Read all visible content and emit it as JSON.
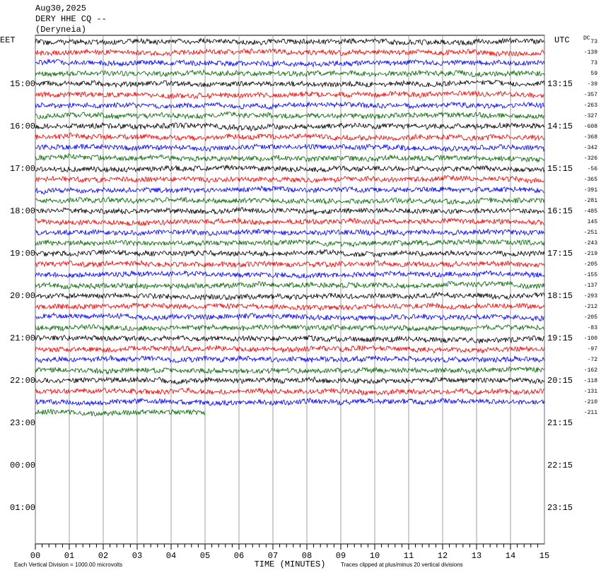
{
  "header": {
    "date": "Aug30,2025",
    "station": "DERY HHE CQ --",
    "location": "(Deryneia)"
  },
  "left_timezone": "EET",
  "right_timezone": "UTC",
  "dc_label": "DC",
  "left_times": [
    "15:00",
    "16:00",
    "17:00",
    "18:00",
    "19:00",
    "20:00",
    "21:00",
    "22:00",
    "23:00",
    "00:00",
    "01:00"
  ],
  "right_times": [
    "13:15",
    "14:15",
    "15:15",
    "16:15",
    "17:15",
    "18:15",
    "19:15",
    "20:15",
    "21:15",
    "22:15",
    "23:15"
  ],
  "dc_offsets": [
    73,
    -139,
    73,
    59,
    -39,
    -357,
    -263,
    -327,
    -608,
    -368,
    -342,
    -326,
    -56,
    -365,
    -391,
    -281,
    -485,
    145,
    -251,
    -243,
    -219,
    -205,
    -155,
    -137,
    -293,
    -212,
    -205,
    -83,
    -100,
    -97,
    -72,
    -162,
    -118,
    -131,
    -210,
    -211
  ],
  "x_ticks": [
    "00",
    "01",
    "02",
    "03",
    "04",
    "05",
    "06",
    "07",
    "08",
    "09",
    "10",
    "11",
    "12",
    "13",
    "14",
    "15"
  ],
  "x_axis_label": "TIME (MINUTES)",
  "footer": {
    "scale": "Each Vertical Division = 1000.00 microvolts",
    "clip": "Traces clipped at plus/minus 20 vertical divisions"
  }
}
